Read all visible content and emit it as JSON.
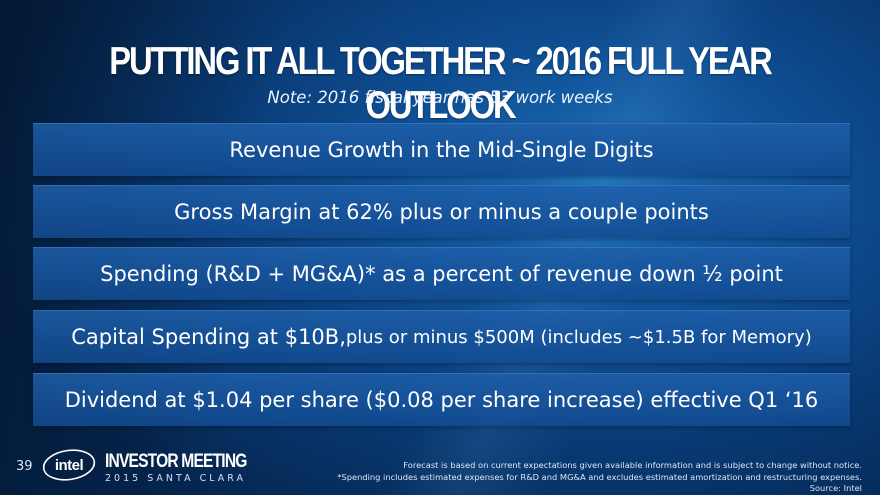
{
  "slide": {
    "title": "PUTTING IT ALL TOGETHER ~ 2016 FULL YEAR OUTLOOK",
    "subtitle": "Note: 2016 fiscal year has 53 work weeks"
  },
  "items": [
    {
      "main": "Revenue Growth in the Mid-Single Digits",
      "detail": ""
    },
    {
      "main": "Gross Margin at 62% plus or minus a couple points",
      "detail": ""
    },
    {
      "main": "Spending (R&D + MG&A)* as a percent of revenue down ½ point",
      "detail": ""
    },
    {
      "main": "Capital Spending at $10B,",
      "detail": " plus or minus $500M (includes ~$1.5B for Memory)"
    },
    {
      "main": "Dividend at $1.04 per share ($0.08 per share increase) effective Q1 ‘16",
      "detail": ""
    }
  ],
  "footer": {
    "page_number": "39",
    "logo_text": "intel",
    "event_title": "INVESTOR MEETING",
    "event_subtitle": "2015 SANTA CLARA",
    "note_1": "Forecast is based on current expectations given available information and is subject to change without notice.",
    "note_2": "*Spending includes estimated expenses for R&D and MG&A and excludes estimated amortization and restructuring expenses.",
    "source": "Source: Intel"
  },
  "colors": {
    "background": "#0f4f94",
    "box_fill": "#1a5ca6",
    "text": "#ffffff"
  }
}
